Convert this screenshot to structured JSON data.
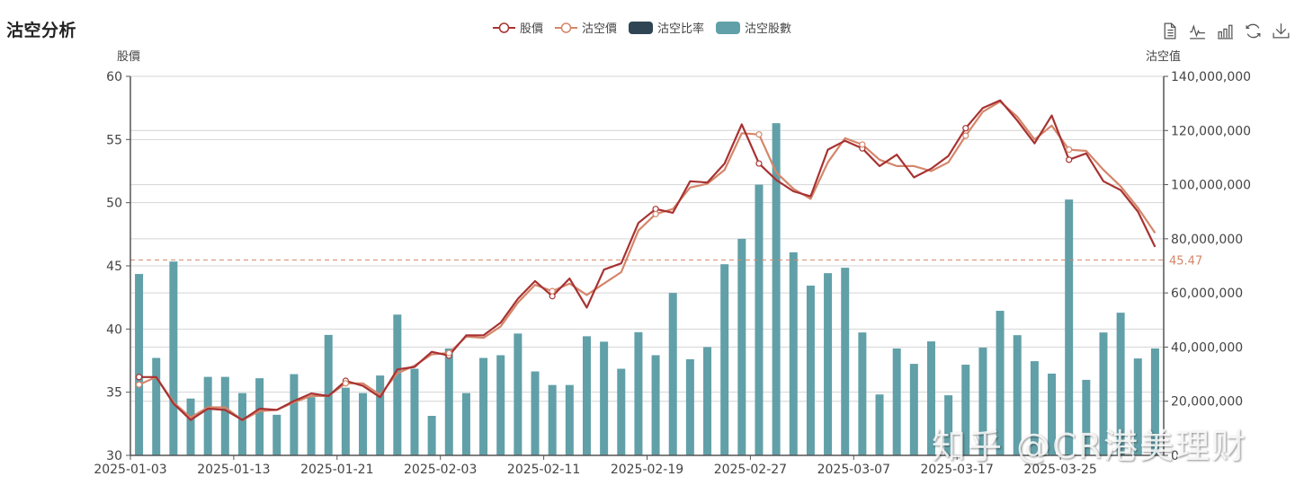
{
  "title": "沽空分析",
  "legend": [
    {
      "label": "股價",
      "type": "line",
      "color": "#a83232"
    },
    {
      "label": "沽空價",
      "type": "line",
      "color": "#d4866a"
    },
    {
      "label": "沽空比率",
      "type": "bar",
      "color": "#2f4554"
    },
    {
      "label": "沽空股數",
      "type": "bar",
      "color": "#61a0a8"
    }
  ],
  "toolbox": [
    "data-view-icon",
    "line-chart-icon",
    "bar-chart-icon",
    "restore-icon",
    "download-icon"
  ],
  "axes": {
    "left_name": "股價",
    "right_name": "沽空值",
    "left_ticks": [
      "30",
      "35",
      "40",
      "45",
      "50",
      "55",
      "60"
    ],
    "right_ticks": [
      "0",
      "20,000,000",
      "40,000,000",
      "60,000,000",
      "80,000,000",
      "100,000,000",
      "120,000,000",
      "140,000,000"
    ],
    "x_ticks": [
      "2025-01-03",
      "2025-01-13",
      "2025-01-21",
      "2025-02-03",
      "2025-02-11",
      "2025-02-19",
      "2025-02-27",
      "2025-03-07",
      "2025-03-17",
      "2025-03-25"
    ]
  },
  "markline": {
    "label": "45.47",
    "value": 45.47,
    "color": "#d4866a"
  },
  "watermark": "知乎 @CR港美理财",
  "chart_data": {
    "type": "bar+line",
    "title": "沽空分析",
    "xlabel": "",
    "ylabel_left": "股價",
    "ylabel_right": "沽空值",
    "ylim_left": [
      30,
      60
    ],
    "ylim_right": [
      0,
      140000000
    ],
    "grid": true,
    "legend_position": "top-center",
    "x_tick_labels": [
      "2025-01-03",
      "2025-01-13",
      "2025-01-21",
      "2025-02-03",
      "2025-02-11",
      "2025-02-19",
      "2025-02-27",
      "2025-03-07",
      "2025-03-17",
      "2025-03-25"
    ],
    "n_points": 60,
    "markline_average_price": 45.47,
    "series": [
      {
        "name": "股價",
        "type": "line",
        "axis": "left",
        "values": [
          36.2,
          36.2,
          34.1,
          32.8,
          33.7,
          33.6,
          32.8,
          33.7,
          33.6,
          34.3,
          34.9,
          34.7,
          35.9,
          35.5,
          34.6,
          36.8,
          37.0,
          38.2,
          37.9,
          39.5,
          39.5,
          40.5,
          42.4,
          43.8,
          42.6,
          44.0,
          41.7,
          44.7,
          45.2,
          48.4,
          49.5,
          49.2,
          51.7,
          51.6,
          53.1,
          56.2,
          53.1,
          51.8,
          50.9,
          50.5,
          54.2,
          54.9,
          54.3,
          52.9,
          53.8,
          52.0,
          52.7,
          53.7,
          55.9,
          57.5,
          58.1,
          56.5,
          54.7,
          56.9,
          53.4,
          53.9,
          51.7,
          51.0,
          49.3,
          46.5
        ]
      },
      {
        "name": "沽空價",
        "type": "line",
        "axis": "left",
        "values": [
          35.6,
          36.2,
          34.2,
          33.0,
          33.8,
          33.8,
          32.8,
          33.5,
          33.6,
          34.2,
          34.7,
          34.7,
          35.7,
          35.7,
          34.8,
          36.5,
          37.1,
          38.0,
          38.1,
          39.4,
          39.3,
          40.2,
          42.1,
          43.5,
          43.0,
          43.6,
          42.7,
          43.6,
          44.5,
          47.8,
          49.1,
          49.5,
          51.2,
          51.5,
          52.6,
          55.5,
          55.4,
          52.4,
          51.1,
          50.3,
          53.2,
          55.1,
          54.6,
          53.4,
          52.9,
          52.9,
          52.5,
          53.2,
          55.3,
          57.2,
          58.0,
          56.8,
          55.0,
          56.1,
          54.2,
          54.1,
          52.6,
          51.3,
          49.6,
          47.6
        ]
      },
      {
        "name": "沽空股數",
        "type": "bar",
        "axis": "right",
        "values": [
          67000000,
          36000000,
          71600000,
          21000000,
          29000000,
          29000000,
          23000000,
          28500000,
          15000000,
          30000000,
          21500000,
          44500000,
          25000000,
          23000000,
          29500000,
          52000000,
          32000000,
          14600000,
          39500000,
          23000000,
          36000000,
          37000000,
          45000000,
          31000000,
          26000000,
          26000000,
          44000000,
          42000000,
          32000000,
          45500000,
          37000000,
          60000000,
          35500000,
          40000000,
          70600000,
          80000000,
          100000000,
          122700000,
          75000000,
          62700000,
          67300000,
          69300000,
          45400000,
          22500000,
          39500000,
          33800000,
          42100000,
          22200000,
          33500000,
          39800000,
          53400000,
          44400000,
          34800000,
          30200000,
          94500000,
          27900000,
          45400000,
          52700000,
          35800000,
          39500000
        ]
      }
    ]
  }
}
